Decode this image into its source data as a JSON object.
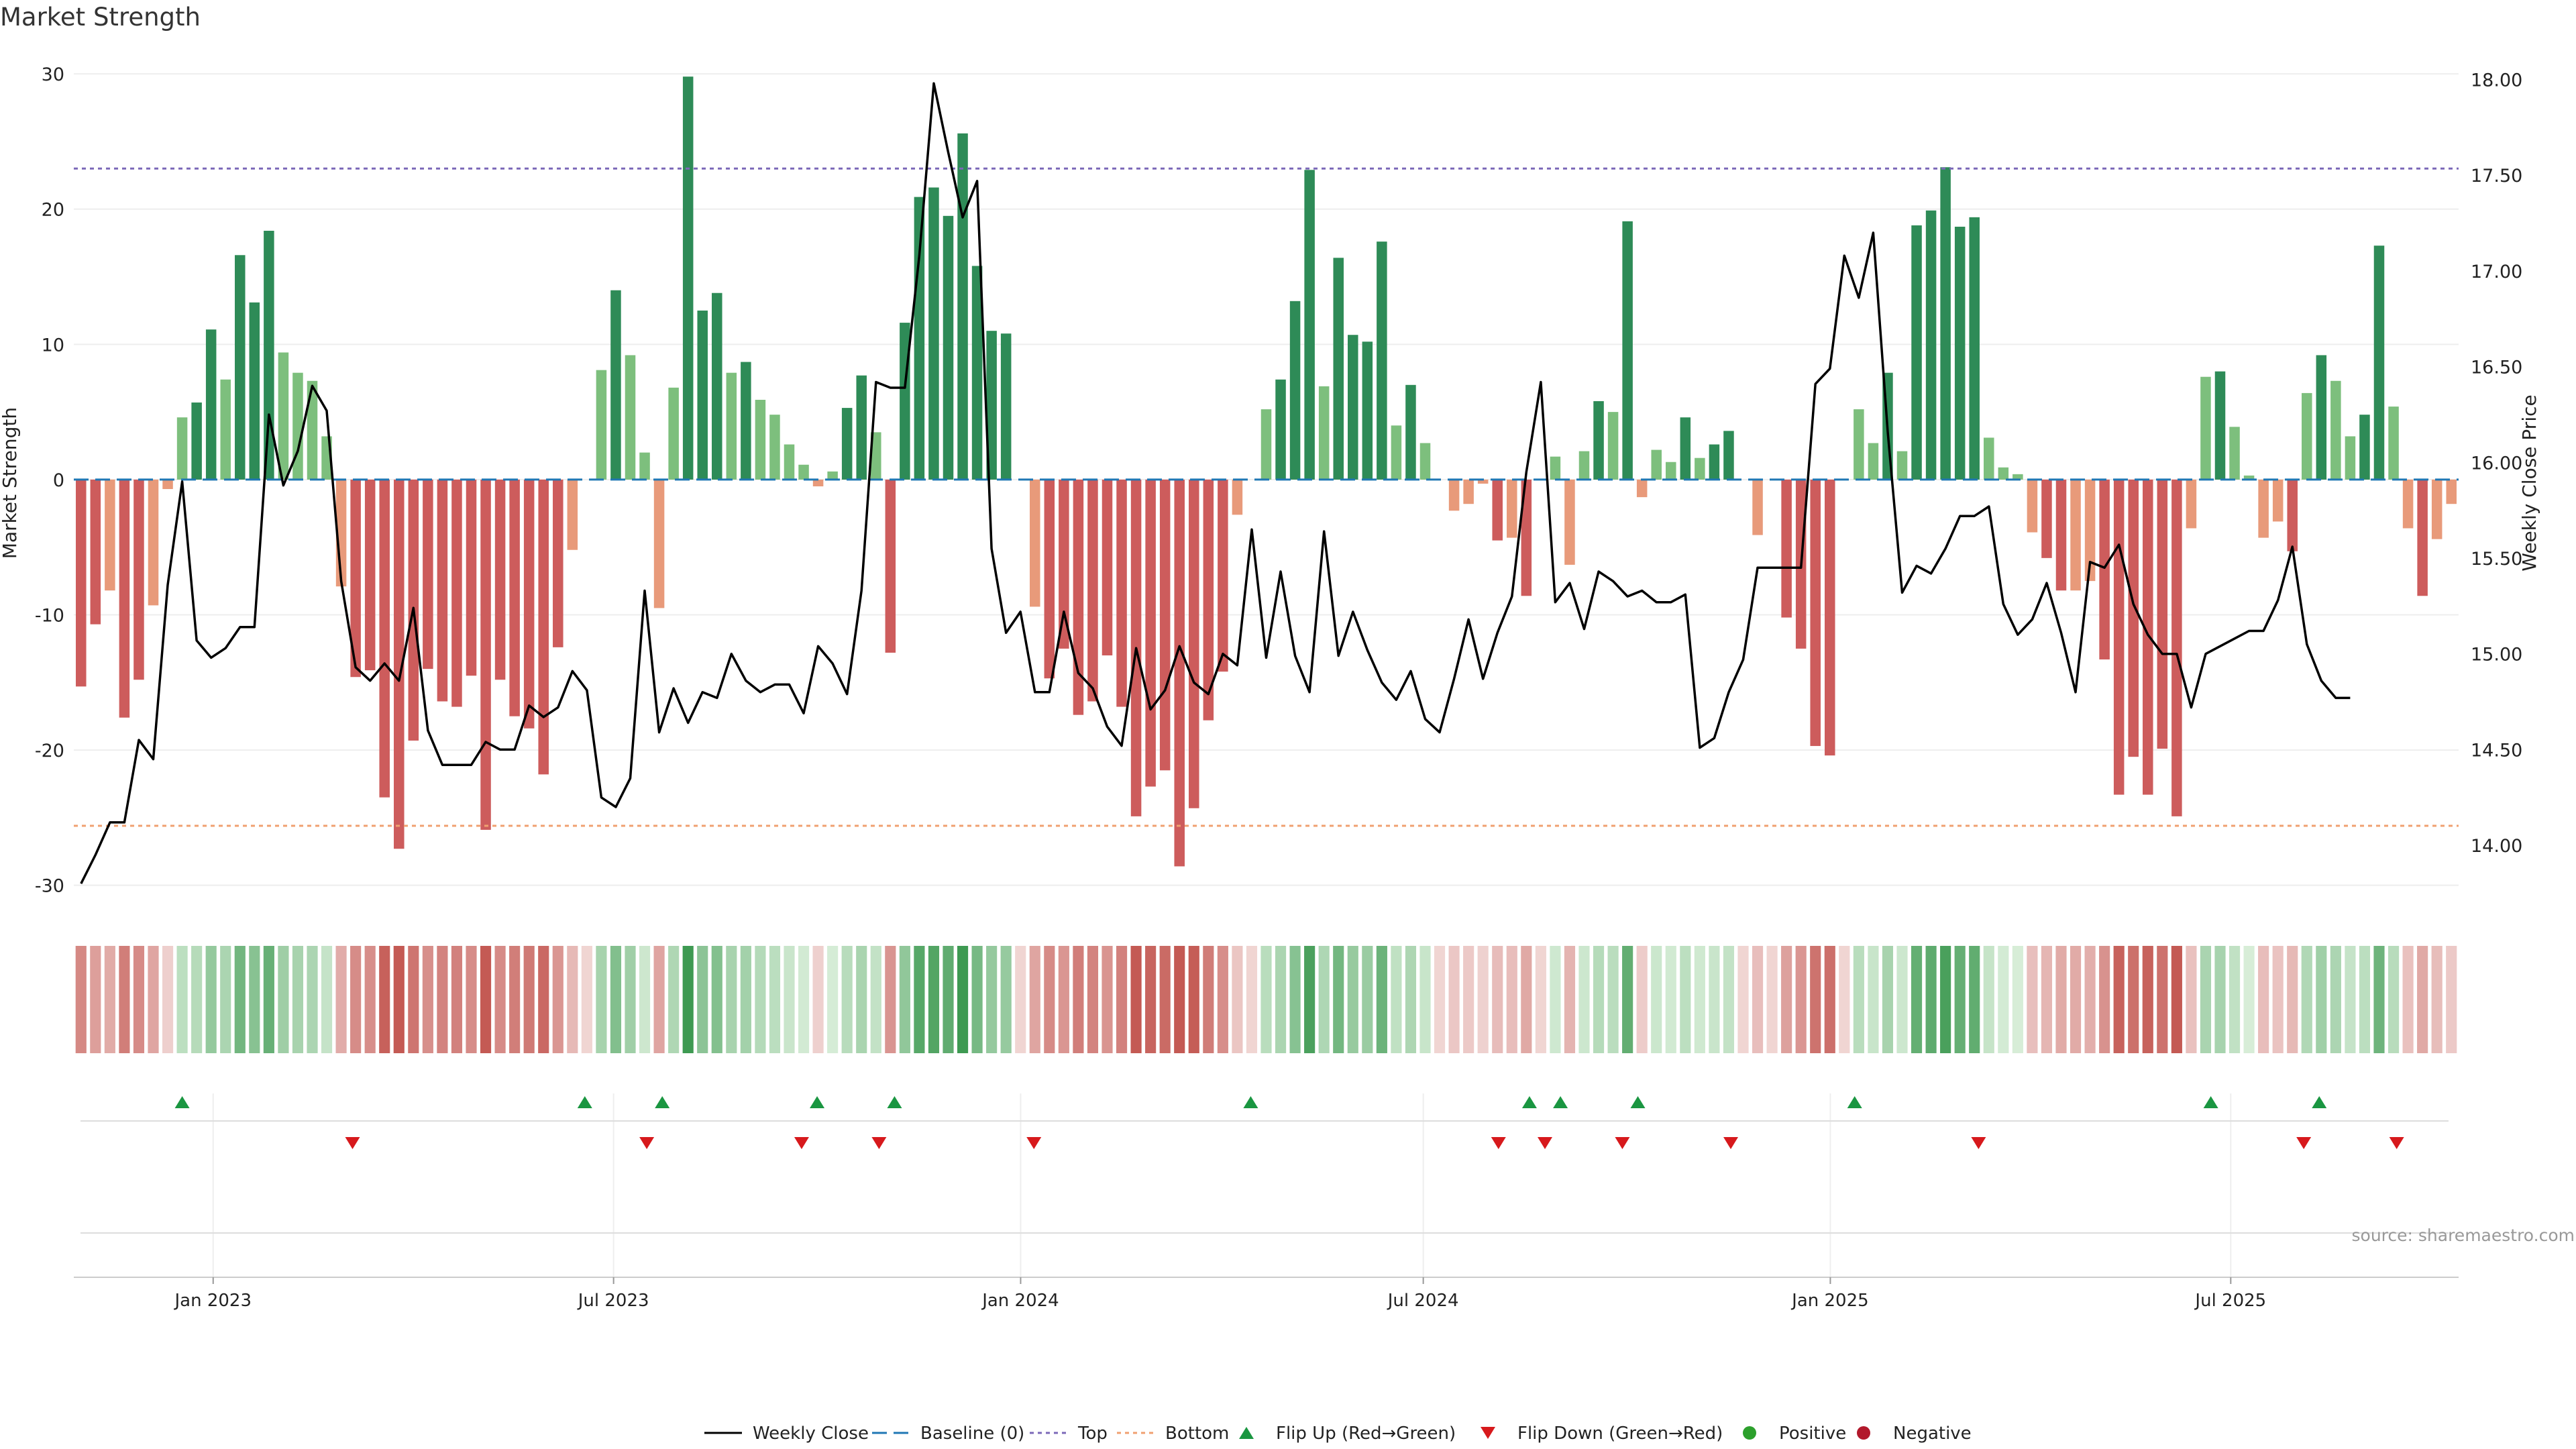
{
  "title": "Market Strength",
  "source": "source: sharemaestro.com",
  "colors": {
    "strong_pos": "#2e8b57",
    "weak_pos": "#7dbf7d",
    "strong_neg": "#cd5c5c",
    "weak_neg": "#e89a7a",
    "baseline": "#1f77b4",
    "top": "#7b68b8",
    "bottom": "#f0a070",
    "price": "#000000",
    "flip_up": "#1a9641",
    "flip_down": "#d7191c",
    "positive": "#2ca02c",
    "negative": "#b2182b"
  },
  "chart_data": {
    "type": "bar",
    "title": "Market Strength",
    "ylabel": "Market Strength",
    "y2label": "Weekly Close Price",
    "ylim": [
      -32,
      31
    ],
    "y2lim": [
      13.65,
      18.1
    ],
    "yticks": [
      30,
      20,
      10,
      0,
      -10,
      -20,
      -30
    ],
    "y2ticks": [
      "18.00",
      "17.50",
      "17.00",
      "16.50",
      "16.00",
      "15.50",
      "15.00",
      "14.50",
      "14.00"
    ],
    "top_level": 23,
    "bottom_level": -25.6,
    "x_start": "2022-10-30",
    "x_end": "2025-10-12",
    "xticks": [
      {
        "date": "2023-01-01",
        "label": "Jan 2023"
      },
      {
        "date": "2023-07-01",
        "label": "Jul 2023"
      },
      {
        "date": "2024-01-01",
        "label": "Jan 2024"
      },
      {
        "date": "2024-07-01",
        "label": "Jul 2024"
      },
      {
        "date": "2025-01-01",
        "label": "Jan 2025"
      },
      {
        "date": "2025-07-01",
        "label": "Jul 2025"
      }
    ],
    "strength": [
      -15.3,
      -10.7,
      -8.2,
      -17.6,
      -14.8,
      -9.3,
      -0.7,
      4.6,
      5.7,
      11.1,
      7.4,
      16.6,
      13.1,
      18.4,
      9.4,
      7.9,
      7.3,
      3.2,
      -7.9,
      -14.6,
      -14.1,
      -23.5,
      -27.3,
      -19.3,
      -14.0,
      -16.4,
      -16.8,
      -14.5,
      -25.9,
      -14.8,
      -17.5,
      -18.4,
      -21.8,
      -12.4,
      -5.2,
      0,
      8.1,
      14.0,
      9.2,
      2.0,
      -9.5,
      6.8,
      29.8,
      12.5,
      13.8,
      7.9,
      8.7,
      5.9,
      4.8,
      2.6,
      1.1,
      -0.5,
      0.6,
      5.3,
      7.7,
      3.5,
      -12.8,
      11.6,
      20.9,
      21.6,
      19.5,
      25.6,
      15.8,
      11.0,
      10.8,
      0,
      -9.4,
      -14.7,
      -12.5,
      -17.4,
      -16.4,
      -13.0,
      -16.8,
      -24.9,
      -22.7,
      -21.5,
      -28.6,
      -24.3,
      -17.8,
      -14.2,
      -2.6,
      0,
      5.2,
      7.4,
      13.2,
      22.9,
      6.9,
      16.4,
      10.7,
      10.2,
      17.6,
      4.0,
      7.0,
      2.7,
      0,
      -2.3,
      -1.8,
      -0.3,
      -4.5,
      -4.3,
      -8.6,
      0,
      1.7,
      -6.3,
      2.1,
      5.8,
      5.0,
      19.1,
      -1.3,
      2.2,
      1.3,
      4.6,
      1.6,
      2.6,
      3.6,
      0,
      -4.1,
      0,
      -10.2,
      -12.5,
      -19.7,
      -20.4,
      0,
      5.2,
      2.7,
      7.9,
      2.1,
      18.8,
      19.9,
      23.1,
      18.7,
      19.4,
      3.1,
      0.9,
      0.4,
      -3.9,
      -5.8,
      -8.2,
      -8.2,
      -7.5,
      -13.3,
      -23.3,
      -20.5,
      -23.3,
      -19.9,
      -24.9,
      -3.6,
      7.6,
      8.0,
      3.9,
      0.3,
      -4.3,
      -3.1,
      -5.3,
      6.4,
      9.2,
      7.3,
      3.2,
      4.8,
      17.3,
      5.4,
      -3.6,
      -8.6,
      -4.4,
      -1.8
    ],
    "weekly_close": [
      13.8,
      13.95,
      14.12,
      14.12,
      14.55,
      14.45,
      15.36,
      15.9,
      15.07,
      14.98,
      15.03,
      15.14,
      15.14,
      16.25,
      15.88,
      16.06,
      16.4,
      16.27,
      15.38,
      14.93,
      14.86,
      14.95,
      14.86,
      15.24,
      14.6,
      14.42,
      14.42,
      14.42,
      14.54,
      14.5,
      14.5,
      14.73,
      14.67,
      14.72,
      14.91,
      14.81,
      14.25,
      14.2,
      14.35,
      15.33,
      14.59,
      14.82,
      14.64,
      14.8,
      14.77,
      15.0,
      14.86,
      14.8,
      14.84,
      14.84,
      14.69,
      15.04,
      14.95,
      14.79,
      15.33,
      16.42,
      16.39,
      16.39,
      17.08,
      17.98,
      17.62,
      17.28,
      17.47,
      15.55,
      15.11,
      15.22,
      14.8,
      14.8,
      15.22,
      14.9,
      14.82,
      14.62,
      14.52,
      15.03,
      14.71,
      14.81,
      15.04,
      14.85,
      14.79,
      15.0,
      14.94,
      15.65,
      14.98,
      15.43,
      14.99,
      14.8,
      15.64,
      14.99,
      15.22,
      15.02,
      14.85,
      14.76,
      14.91,
      14.66,
      14.59,
      14.87,
      15.18,
      14.87,
      15.11,
      15.3,
      15.95,
      16.42,
      15.27,
      15.37,
      15.13,
      15.43,
      15.38,
      15.3,
      15.33,
      15.27,
      15.27,
      15.31,
      14.51,
      14.56,
      14.8,
      14.97,
      15.45,
      15.45,
      15.45,
      15.45,
      16.41,
      16.49,
      17.08,
      16.86,
      17.2,
      16.16,
      15.32,
      15.46,
      15.42,
      15.55,
      15.72,
      15.72,
      15.77,
      15.26,
      15.1,
      15.18,
      15.37,
      15.11,
      14.8,
      15.48,
      15.45,
      15.57,
      15.26,
      15.1,
      15.0,
      15.0,
      14.72,
      15.0,
      15.04,
      15.08,
      15.12,
      15.12,
      15.28,
      15.56,
      15.05,
      14.86,
      14.77,
      14.77
    ],
    "flip_up": [
      "2022-12-18",
      "2023-06-18",
      "2023-07-23",
      "2023-10-01",
      "2023-11-05",
      "2024-04-14",
      "2024-08-18",
      "2024-09-01",
      "2024-10-06",
      "2025-01-12",
      "2025-06-22",
      "2025-08-10"
    ],
    "flip_down": [
      "2023-03-05",
      "2023-07-16",
      "2023-09-24",
      "2023-10-29",
      "2024-01-07",
      "2024-08-04",
      "2024-08-25",
      "2024-09-29",
      "2024-11-17",
      "2025-03-09",
      "2025-08-03",
      "2025-09-14"
    ],
    "legend": [
      "Weekly Close",
      "Baseline (0)",
      "Top",
      "Bottom",
      "Flip Up (Red→Green)",
      "Flip Down (Green→Red)",
      "Positive",
      "Negative"
    ]
  }
}
